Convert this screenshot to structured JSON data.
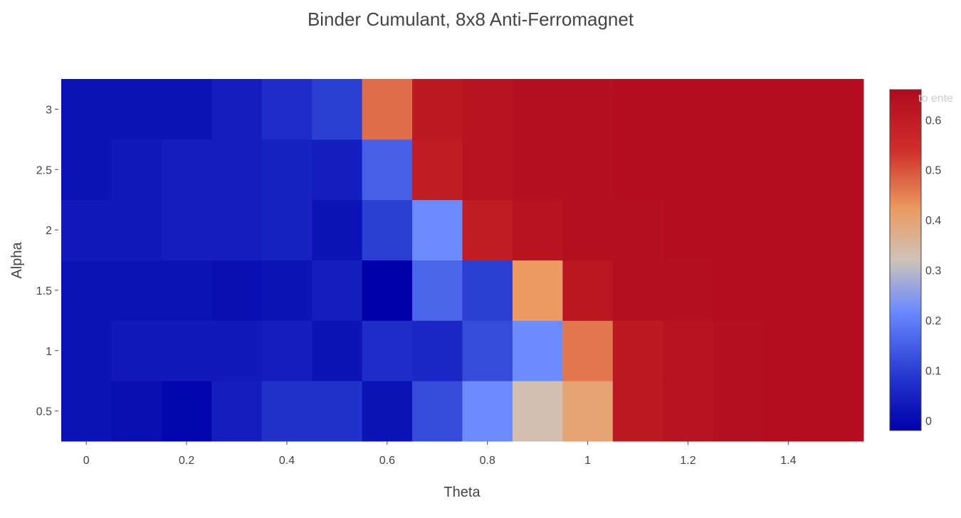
{
  "chart_data": {
    "type": "heatmap",
    "title": "Binder Cumulant, 8x8 Anti-Ferromagnet",
    "xlabel": "Theta",
    "ylabel": "Alpha",
    "x": [
      0,
      0.1,
      0.2,
      0.3,
      0.4,
      0.5,
      0.6,
      0.7,
      0.8,
      0.9,
      1.0,
      1.1,
      1.2,
      1.3,
      1.4,
      1.5
    ],
    "y": [
      0.5,
      1.0,
      1.5,
      2.0,
      2.5,
      3.0
    ],
    "x_ticks": [
      0,
      0.2,
      0.4,
      0.6,
      0.8,
      1,
      1.2,
      1.4
    ],
    "x_tick_labels": [
      "0",
      "0.2",
      "0.4",
      "0.6",
      "0.8",
      "1",
      "1.2",
      "1.4"
    ],
    "y_ticks": [
      0.5,
      1,
      1.5,
      2,
      2.5,
      3
    ],
    "y_tick_labels": [
      "0.5",
      "1",
      "1.5",
      "2",
      "2.5",
      "3"
    ],
    "xlim": [
      -0.05,
      1.55
    ],
    "ylim": [
      0.25,
      3.25
    ],
    "z": [
      [
        0.02,
        0.01,
        -0.01,
        0.04,
        0.08,
        0.08,
        0.02,
        0.12,
        0.22,
        0.33,
        0.4,
        0.61,
        0.63,
        0.64,
        0.65,
        0.65
      ],
      [
        0.02,
        0.03,
        0.03,
        0.03,
        0.04,
        0.02,
        0.07,
        0.06,
        0.12,
        0.22,
        0.46,
        0.61,
        0.63,
        0.64,
        0.65,
        0.65
      ],
      [
        0.02,
        0.02,
        0.02,
        0.01,
        0.02,
        0.04,
        -0.02,
        0.16,
        0.1,
        0.42,
        0.62,
        0.64,
        0.64,
        0.65,
        0.65,
        0.65
      ],
      [
        0.03,
        0.03,
        0.04,
        0.04,
        0.05,
        0.02,
        0.1,
        0.22,
        0.6,
        0.63,
        0.64,
        0.64,
        0.65,
        0.65,
        0.65,
        0.65
      ],
      [
        0.02,
        0.03,
        0.04,
        0.04,
        0.05,
        0.04,
        0.15,
        0.6,
        0.63,
        0.64,
        0.64,
        0.65,
        0.65,
        0.65,
        0.65,
        0.65
      ],
      [
        0.02,
        0.02,
        0.02,
        0.04,
        0.07,
        0.1,
        0.47,
        0.61,
        0.63,
        0.64,
        0.64,
        0.65,
        0.65,
        0.65,
        0.65,
        0.65
      ]
    ],
    "colorscale": "coolwarm",
    "zmin": -0.02,
    "zmax": 0.66,
    "colorbar_ticks": [
      0,
      0.1,
      0.2,
      0.3,
      0.4,
      0.5,
      0.6
    ],
    "colorbar_tick_labels": [
      "0",
      "0.1",
      "0.2",
      "0.3",
      "0.4",
      "0.5",
      "0.6"
    ],
    "colorbar_overflow_text": "to ente",
    "colorscale_stops": [
      {
        "t": 0.0,
        "color": "#0000aa"
      },
      {
        "t": 0.15,
        "color": "#2233cc"
      },
      {
        "t": 0.35,
        "color": "#6a8aff"
      },
      {
        "t": 0.5,
        "color": "#cfc3b8"
      },
      {
        "t": 0.65,
        "color": "#ec9a60"
      },
      {
        "t": 0.82,
        "color": "#cf2f2b"
      },
      {
        "t": 1.0,
        "color": "#b00a1e"
      }
    ]
  }
}
